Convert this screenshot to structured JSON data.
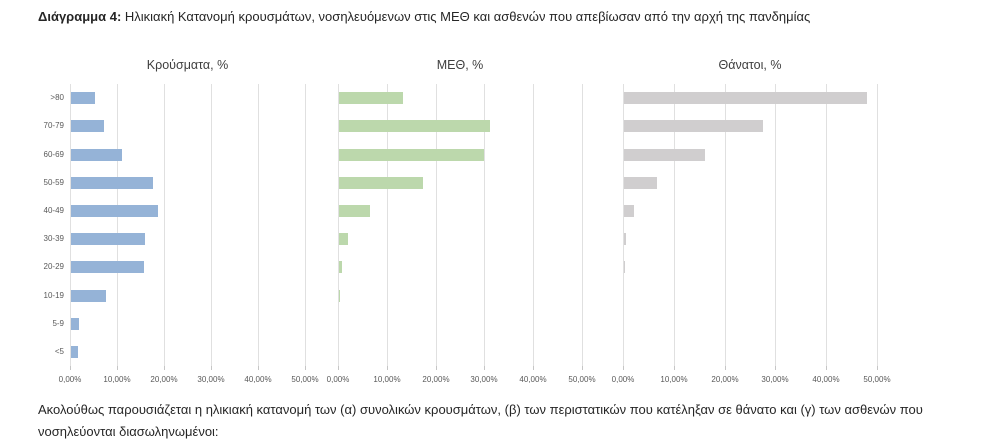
{
  "page": {
    "title_label": "Διάγραμμα 4:",
    "title_text": " Ηλικιακή Κατανομή κρουσμάτων, νοσηλευόμενων στις ΜΕΘ και ασθενών που απεβίωσαν από την αρχή της πανδημίας",
    "footer_text": "Ακολούθως παρουσιάζεται η ηλικιακή κατανομή των (α) συνολικών κρουσμάτων, (β) των περιστατικών που κατέληξαν σε θάνατο και (γ) των ασθενών που νοσηλεύονται διασωληνωμένοι:"
  },
  "chart_data": {
    "type": "bar",
    "orientation": "horizontal",
    "categories": [
      ">80",
      "70-79",
      "60-69",
      "50-59",
      "40-49",
      "30-39",
      "20-29",
      "10-19",
      "5-9",
      "<5"
    ],
    "x_tick_labels": [
      "0,00%",
      "10,00%",
      "20,00%",
      "30,00%",
      "40,00%",
      "50,00%"
    ],
    "xlim": [
      0,
      50
    ],
    "grid": true,
    "legend": "none",
    "colors": {
      "cases": "#95b3d7",
      "icu": "#bcd8ac",
      "deaths": "#d0cecf",
      "gridline": "#e0e0e0",
      "axis_text": "#595959"
    },
    "panels": [
      {
        "id": "cases",
        "title": "Κρούσματα, %",
        "color": "#95b3d7",
        "values": [
          5.1,
          7.0,
          10.8,
          17.4,
          18.6,
          15.7,
          15.6,
          7.4,
          1.6,
          1.4
        ]
      },
      {
        "id": "icu",
        "title": "ΜΕΘ, %",
        "color": "#bcd8ac",
        "values": [
          13.1,
          30.9,
          29.8,
          17.3,
          6.3,
          1.9,
          0.6,
          0.2,
          0.0,
          0.0
        ]
      },
      {
        "id": "deaths",
        "title": "Θάνατοι, %",
        "color": "#d0cecf",
        "values": [
          47.9,
          27.4,
          15.9,
          6.4,
          2.0,
          0.3,
          0.1,
          0.0,
          0.0,
          0.0
        ]
      }
    ]
  }
}
